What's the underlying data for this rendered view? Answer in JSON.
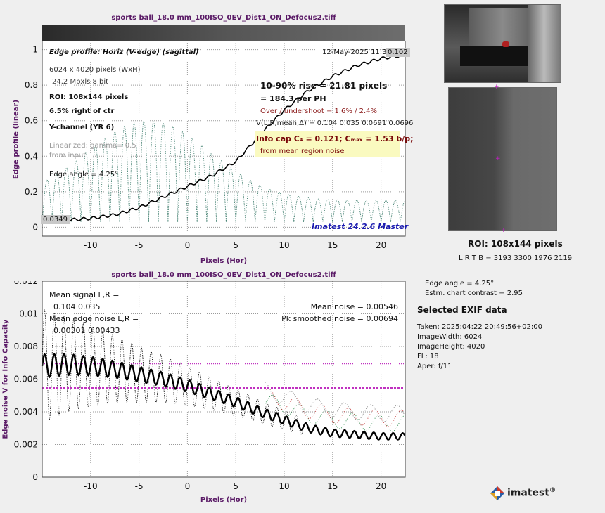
{
  "top_chart": {
    "title": "sports ball_18.0 mm_100ISO_0EV_Dist1_ON_Defocus2.tiff",
    "ylabel": "Edge profile (linear)",
    "xlabel": "Pixels (Hor)",
    "x_ticks": [
      "-10",
      "-5",
      "0",
      "5",
      "10",
      "15",
      "20"
    ],
    "y_ticks": [
      "0",
      "0.2",
      "0.4",
      "0.6",
      "0.8",
      "1"
    ],
    "info_left": {
      "edge_profile": "Edge profile: Horiz (V-edge) (sagittal)",
      "dims": "6024 x 4020 pixels (WxH)",
      "mpxls": "24.2 Mpxls   8 bit",
      "roi": "ROI:  108x144 pixels",
      "right_ctr": "6.5% right of ctr",
      "channel": "Y-channel  (YR 6)",
      "linearized": "Linearized: gamma= 0.5",
      "from_input": "from input",
      "edge_angle": "Edge angle = 4.25°"
    },
    "date": "12-May-2025 11:33:16",
    "rise": "10-90% rise = 21.81 pixels",
    "per_ph": "=  184.3 per PH",
    "overshoot": "Over / undershoot =  1.6% /  2.4%",
    "vlr": "V(L,R,mean,Δ) = 0.104  0.035  0.0691  0.0696",
    "info_cap": "Info cap C₄ = 0.121;  Cₘₐₓ = 1.53 b/p;",
    "info_cap_sub": "from mean region noise",
    "brand": "Imatest 24.2.6 Master",
    "label_low": "0.0349",
    "label_high": "0.102"
  },
  "bottom_chart": {
    "title": "sports ball_18.0 mm_100ISO_0EV_Dist1_ON_Defocus2.tiff",
    "ylabel": "Edge noise V for Info Capacity",
    "xlabel": "Pixels (Hor)",
    "x_ticks": [
      "-10",
      "-5",
      "0",
      "5",
      "10",
      "15",
      "20"
    ],
    "y_ticks": [
      "0",
      "0.002",
      "0.004",
      "0.006",
      "0.008",
      "0.01",
      "0.012"
    ],
    "mean_signal_label": "Mean signal L,R =",
    "mean_signal_value": "0.104  0.035",
    "mean_edge_noise_label": "Mean edge noise L,R =",
    "mean_edge_noise_value": "0.00301  0.00433",
    "mean_noise": "Mean noise = 0.00546",
    "pk_noise": "Pk smoothed noise = 0.00694"
  },
  "right_panel": {
    "roi_title": "ROI:  108x144 pixels",
    "lrtb": "L R  T B = 3193 3300   1976 2119",
    "edge_angle": "Edge angle = 4.25°",
    "contrast": "Estm. chart contrast = 2.95",
    "exif_title": "Selected EXIF data",
    "exif": [
      "Taken: 2025:04:22 20:49:56+02:00",
      "ImageWidth:  6024",
      "ImageHeight:  4020",
      "FL:   18",
      "Aper:  f/11"
    ],
    "logo_text": "imatest",
    "logo_reg": "®"
  },
  "chart_data": [
    {
      "type": "line",
      "title": "sports ball_18.0 mm_100ISO_0EV_Dist1_ON_Defocus2.tiff",
      "xlabel": "Pixels (Hor)",
      "ylabel": "Edge profile (linear)",
      "xlim": [
        -15,
        22.5
      ],
      "ylim": [
        -0.05,
        1.05
      ],
      "grid": true,
      "series": [
        {
          "x": [
            -15,
            -12.5,
            -10,
            -7.5,
            -5,
            -2.5,
            0,
            2.5,
            5,
            7.5,
            10,
            12.5,
            15,
            17.5,
            20,
            22.5
          ],
          "values": [
            0.035,
            0.04,
            0.05,
            0.07,
            0.11,
            0.17,
            0.23,
            0.29,
            0.37,
            0.52,
            0.66,
            0.77,
            0.85,
            0.91,
            0.95,
            0.97
          ]
        }
      ]
    },
    {
      "type": "line",
      "title": "sports ball_18.0 mm_100ISO_0EV_Dist1_ON_Defocus2.tiff",
      "xlabel": "Pixels (Hor)",
      "ylabel": "Edge noise V for Info Capacity",
      "xlim": [
        -15,
        22.5
      ],
      "ylim": [
        0,
        0.012
      ],
      "grid": true,
      "series": [
        {
          "x": [
            -15,
            -12.5,
            -10,
            -7.5,
            -5,
            -2.5,
            0,
            2.5,
            5,
            7.5,
            10,
            12.5,
            15,
            17.5,
            20,
            22.5
          ],
          "values": [
            0.0068,
            0.0069,
            0.0068,
            0.0066,
            0.0063,
            0.006,
            0.0056,
            0.0051,
            0.0046,
            0.004,
            0.0035,
            0.003,
            0.0027,
            0.0026,
            0.0025,
            0.0025
          ]
        }
      ],
      "hlines": [
        0.00546,
        0.00694
      ]
    }
  ]
}
